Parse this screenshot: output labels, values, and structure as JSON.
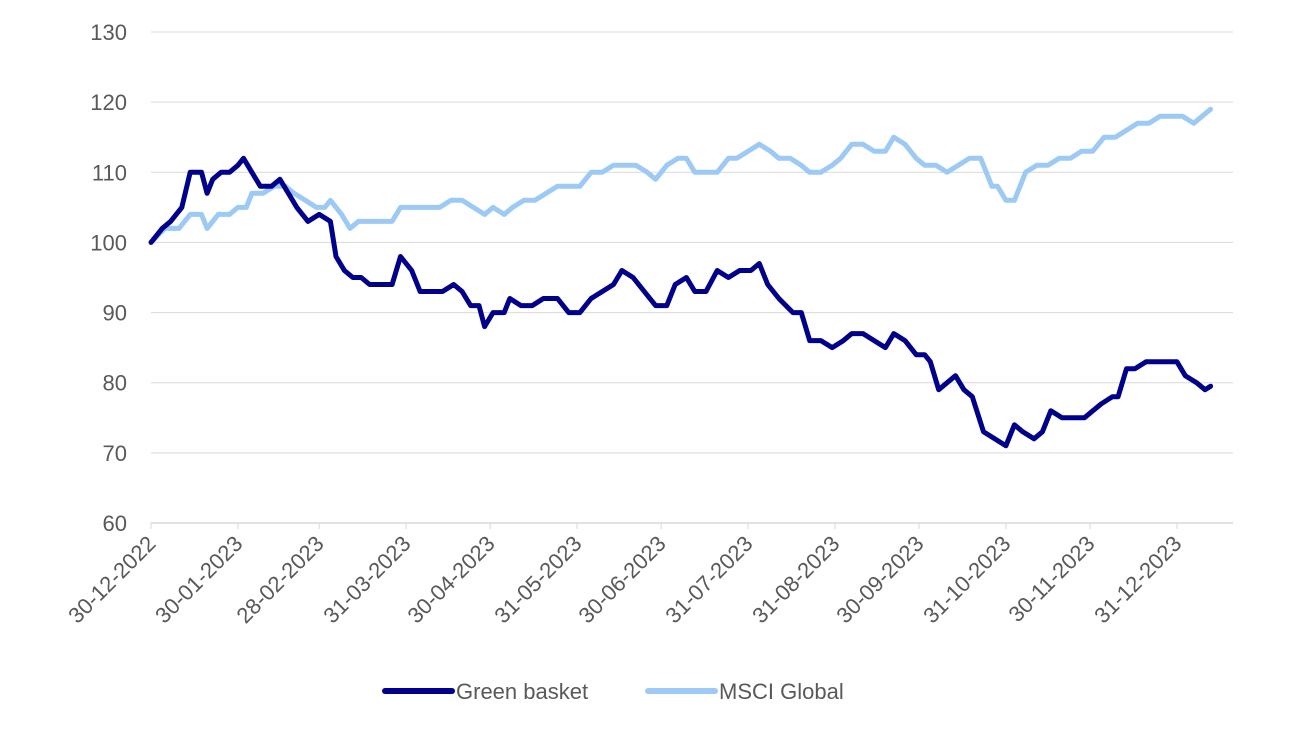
{
  "chart_data": {
    "type": "line",
    "title": "",
    "xlabel": "",
    "ylabel": "",
    "ylim": [
      60,
      130
    ],
    "yticks": [
      60,
      70,
      80,
      90,
      100,
      110,
      120,
      130
    ],
    "xlim": [
      "2022-12-30",
      "2024-01-20"
    ],
    "xtick_labels": [
      "30-12-2022",
      "30-01-2023",
      "28-02-2023",
      "31-03-2023",
      "30-04-2023",
      "31-05-2023",
      "30-06-2023",
      "31-07-2023",
      "31-08-2023",
      "30-09-2023",
      "31-10-2023",
      "30-11-2023",
      "31-12-2023"
    ],
    "grid": "horizontal",
    "legend": "bottom-center",
    "series": [
      {
        "name": "Green basket",
        "color": "#00008B",
        "points": [
          [
            "2022-12-30",
            100
          ],
          [
            "2023-01-03",
            102
          ],
          [
            "2023-01-06",
            103
          ],
          [
            "2023-01-10",
            105
          ],
          [
            "2023-01-13",
            110
          ],
          [
            "2023-01-17",
            110
          ],
          [
            "2023-01-19",
            107
          ],
          [
            "2023-01-21",
            109
          ],
          [
            "2023-01-24",
            110
          ],
          [
            "2023-01-27",
            110
          ],
          [
            "2023-01-30",
            111
          ],
          [
            "2023-02-01",
            112
          ],
          [
            "2023-02-04",
            110
          ],
          [
            "2023-02-07",
            108
          ],
          [
            "2023-02-11",
            108
          ],
          [
            "2023-02-14",
            109
          ],
          [
            "2023-02-17",
            107
          ],
          [
            "2023-02-20",
            105
          ],
          [
            "2023-02-24",
            103
          ],
          [
            "2023-02-28",
            104
          ],
          [
            "2023-03-04",
            103
          ],
          [
            "2023-03-06",
            98
          ],
          [
            "2023-03-09",
            96
          ],
          [
            "2023-03-12",
            95
          ],
          [
            "2023-03-15",
            95
          ],
          [
            "2023-03-18",
            94
          ],
          [
            "2023-03-22",
            94
          ],
          [
            "2023-03-26",
            94
          ],
          [
            "2023-03-29",
            98
          ],
          [
            "2023-04-02",
            96
          ],
          [
            "2023-04-05",
            93
          ],
          [
            "2023-04-09",
            93
          ],
          [
            "2023-04-13",
            93
          ],
          [
            "2023-04-17",
            94
          ],
          [
            "2023-04-20",
            93
          ],
          [
            "2023-04-23",
            91
          ],
          [
            "2023-04-26",
            91
          ],
          [
            "2023-04-28",
            88
          ],
          [
            "2023-05-01",
            90
          ],
          [
            "2023-05-05",
            90
          ],
          [
            "2023-05-07",
            92
          ],
          [
            "2023-05-11",
            91
          ],
          [
            "2023-05-15",
            91
          ],
          [
            "2023-05-19",
            92
          ],
          [
            "2023-05-24",
            92
          ],
          [
            "2023-05-28",
            90
          ],
          [
            "2023-06-01",
            90
          ],
          [
            "2023-06-05",
            92
          ],
          [
            "2023-06-09",
            93
          ],
          [
            "2023-06-13",
            94
          ],
          [
            "2023-06-16",
            96
          ],
          [
            "2023-06-20",
            95
          ],
          [
            "2023-06-24",
            93
          ],
          [
            "2023-06-28",
            91
          ],
          [
            "2023-07-02",
            91
          ],
          [
            "2023-07-05",
            94
          ],
          [
            "2023-07-09",
            95
          ],
          [
            "2023-07-12",
            93
          ],
          [
            "2023-07-16",
            93
          ],
          [
            "2023-07-20",
            96
          ],
          [
            "2023-07-24",
            95
          ],
          [
            "2023-07-28",
            96
          ],
          [
            "2023-08-01",
            96
          ],
          [
            "2023-08-04",
            97
          ],
          [
            "2023-08-07",
            94
          ],
          [
            "2023-08-11",
            92
          ],
          [
            "2023-08-16",
            90
          ],
          [
            "2023-08-19",
            90
          ],
          [
            "2023-08-22",
            86
          ],
          [
            "2023-08-26",
            86
          ],
          [
            "2023-08-30",
            85
          ],
          [
            "2023-09-03",
            86
          ],
          [
            "2023-09-06",
            87
          ],
          [
            "2023-09-10",
            87
          ],
          [
            "2023-09-14",
            86
          ],
          [
            "2023-09-18",
            85
          ],
          [
            "2023-09-21",
            87
          ],
          [
            "2023-09-25",
            86
          ],
          [
            "2023-09-29",
            84
          ],
          [
            "2023-10-02",
            84
          ],
          [
            "2023-10-04",
            83
          ],
          [
            "2023-10-07",
            79
          ],
          [
            "2023-10-10",
            80
          ],
          [
            "2023-10-13",
            81
          ],
          [
            "2023-10-16",
            79
          ],
          [
            "2023-10-19",
            78
          ],
          [
            "2023-10-23",
            73
          ],
          [
            "2023-10-27",
            72
          ],
          [
            "2023-10-31",
            71
          ],
          [
            "2023-11-03",
            74
          ],
          [
            "2023-11-06",
            73
          ],
          [
            "2023-11-10",
            72
          ],
          [
            "2023-11-13",
            73
          ],
          [
            "2023-11-16",
            76
          ],
          [
            "2023-11-20",
            75
          ],
          [
            "2023-11-24",
            75
          ],
          [
            "2023-11-28",
            75
          ],
          [
            "2023-12-01",
            76
          ],
          [
            "2023-12-04",
            77
          ],
          [
            "2023-12-08",
            78
          ],
          [
            "2023-12-10",
            78
          ],
          [
            "2023-12-13",
            82
          ],
          [
            "2023-12-16",
            82
          ],
          [
            "2023-12-20",
            83
          ],
          [
            "2023-12-24",
            83
          ],
          [
            "2023-12-28",
            83
          ],
          [
            "2023-12-31",
            83
          ],
          [
            "2024-01-03",
            81
          ],
          [
            "2024-01-07",
            80
          ],
          [
            "2024-01-10",
            79
          ],
          [
            "2024-01-12",
            79.5
          ]
        ]
      },
      {
        "name": "MSCI Global",
        "color": "#9DC9F5",
        "points": [
          [
            "2022-12-30",
            100
          ],
          [
            "2023-01-04",
            102
          ],
          [
            "2023-01-09",
            102
          ],
          [
            "2023-01-13",
            104
          ],
          [
            "2023-01-17",
            104
          ],
          [
            "2023-01-19",
            102
          ],
          [
            "2023-01-23",
            104
          ],
          [
            "2023-01-27",
            104
          ],
          [
            "2023-01-30",
            105
          ],
          [
            "2023-02-02",
            105
          ],
          [
            "2023-02-04",
            107
          ],
          [
            "2023-02-08",
            107
          ],
          [
            "2023-02-12",
            108
          ],
          [
            "2023-02-16",
            108
          ],
          [
            "2023-02-19",
            107
          ],
          [
            "2023-02-23",
            106
          ],
          [
            "2023-02-27",
            105
          ],
          [
            "2023-03-02",
            105
          ],
          [
            "2023-03-04",
            106
          ],
          [
            "2023-03-08",
            104
          ],
          [
            "2023-03-11",
            102
          ],
          [
            "2023-03-14",
            103
          ],
          [
            "2023-03-18",
            103
          ],
          [
            "2023-03-22",
            103
          ],
          [
            "2023-03-26",
            103
          ],
          [
            "2023-03-29",
            105
          ],
          [
            "2023-04-02",
            105
          ],
          [
            "2023-04-06",
            105
          ],
          [
            "2023-04-12",
            105
          ],
          [
            "2023-04-16",
            106
          ],
          [
            "2023-04-20",
            106
          ],
          [
            "2023-04-24",
            105
          ],
          [
            "2023-04-28",
            104
          ],
          [
            "2023-05-01",
            105
          ],
          [
            "2023-05-05",
            104
          ],
          [
            "2023-05-08",
            105
          ],
          [
            "2023-05-12",
            106
          ],
          [
            "2023-05-16",
            106
          ],
          [
            "2023-05-20",
            107
          ],
          [
            "2023-05-24",
            108
          ],
          [
            "2023-05-28",
            108
          ],
          [
            "2023-06-01",
            108
          ],
          [
            "2023-06-05",
            110
          ],
          [
            "2023-06-09",
            110
          ],
          [
            "2023-06-13",
            111
          ],
          [
            "2023-06-17",
            111
          ],
          [
            "2023-06-21",
            111
          ],
          [
            "2023-06-25",
            110
          ],
          [
            "2023-06-28",
            109
          ],
          [
            "2023-07-02",
            111
          ],
          [
            "2023-07-06",
            112
          ],
          [
            "2023-07-09",
            112
          ],
          [
            "2023-07-12",
            110
          ],
          [
            "2023-07-16",
            110
          ],
          [
            "2023-07-20",
            110
          ],
          [
            "2023-07-24",
            112
          ],
          [
            "2023-07-27",
            112
          ],
          [
            "2023-07-31",
            113
          ],
          [
            "2023-08-04",
            114
          ],
          [
            "2023-08-08",
            113
          ],
          [
            "2023-08-11",
            112
          ],
          [
            "2023-08-15",
            112
          ],
          [
            "2023-08-19",
            111
          ],
          [
            "2023-08-22",
            110
          ],
          [
            "2023-08-26",
            110
          ],
          [
            "2023-08-30",
            111
          ],
          [
            "2023-09-02",
            112
          ],
          [
            "2023-09-06",
            114
          ],
          [
            "2023-09-10",
            114
          ],
          [
            "2023-09-14",
            113
          ],
          [
            "2023-09-18",
            113
          ],
          [
            "2023-09-21",
            115
          ],
          [
            "2023-09-25",
            114
          ],
          [
            "2023-09-29",
            112
          ],
          [
            "2023-10-02",
            111
          ],
          [
            "2023-10-06",
            111
          ],
          [
            "2023-10-10",
            110
          ],
          [
            "2023-10-14",
            111
          ],
          [
            "2023-10-18",
            112
          ],
          [
            "2023-10-22",
            112
          ],
          [
            "2023-10-26",
            108
          ],
          [
            "2023-10-28",
            108
          ],
          [
            "2023-10-31",
            106
          ],
          [
            "2023-11-03",
            106
          ],
          [
            "2023-11-07",
            110
          ],
          [
            "2023-11-11",
            111
          ],
          [
            "2023-11-15",
            111
          ],
          [
            "2023-11-19",
            112
          ],
          [
            "2023-11-23",
            112
          ],
          [
            "2023-11-27",
            113
          ],
          [
            "2023-12-01",
            113
          ],
          [
            "2023-12-05",
            115
          ],
          [
            "2023-12-09",
            115
          ],
          [
            "2023-12-13",
            116
          ],
          [
            "2023-12-17",
            117
          ],
          [
            "2023-12-21",
            117
          ],
          [
            "2023-12-25",
            118
          ],
          [
            "2023-12-29",
            118
          ],
          [
            "2024-01-02",
            118
          ],
          [
            "2024-01-06",
            117
          ],
          [
            "2024-01-09",
            118
          ],
          [
            "2024-01-12",
            119
          ]
        ]
      }
    ]
  }
}
